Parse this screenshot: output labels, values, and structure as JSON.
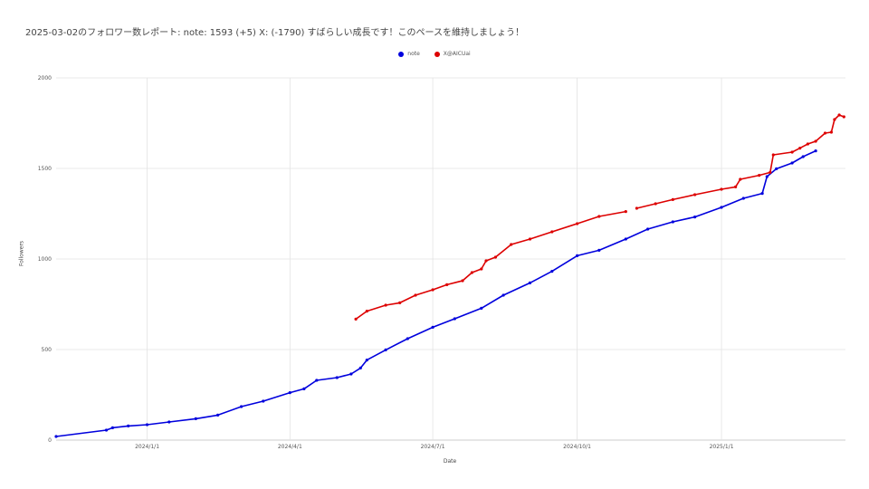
{
  "chart_data": {
    "type": "line",
    "title": "2025-03-02のフォロワー数レポート: note: 1593 (+5) X:  (-1790)  すばらしい成長です！このペースを維持しましょう！",
    "xlabel": "Date",
    "ylabel": "Followers",
    "ylim": [
      0,
      2000
    ],
    "yticks": [
      0,
      500,
      1000,
      1500,
      2000
    ],
    "xlim": [
      "2023-11-04",
      "2025-03-02"
    ],
    "xticks": [
      {
        "date": "2024-01-01",
        "label": "2024/1/1"
      },
      {
        "date": "2024-04-01",
        "label": "2024/4/1"
      },
      {
        "date": "2024-07-01",
        "label": "2024/7/1"
      },
      {
        "date": "2024-10-01",
        "label": "2024/10/1"
      },
      {
        "date": "2025-01-01",
        "label": "2025/1/1"
      }
    ],
    "grid": true,
    "legend_position": "top-center",
    "series": [
      {
        "name": "note",
        "color": "#0000dd",
        "points": [
          [
            "2023-11-04",
            20
          ],
          [
            "2023-12-06",
            55
          ],
          [
            "2023-12-10",
            68
          ],
          [
            "2023-12-20",
            78
          ],
          [
            "2024-01-01",
            85
          ],
          [
            "2024-01-15",
            100
          ],
          [
            "2024-02-01",
            118
          ],
          [
            "2024-02-15",
            138
          ],
          [
            "2024-03-01",
            185
          ],
          [
            "2024-03-15",
            215
          ],
          [
            "2024-04-01",
            262
          ],
          [
            "2024-04-10",
            283
          ],
          [
            "2024-04-18",
            330
          ],
          [
            "2024-05-01",
            345
          ],
          [
            "2024-05-10",
            365
          ],
          [
            "2024-05-16",
            398
          ],
          [
            "2024-05-20",
            442
          ],
          [
            "2024-06-01",
            498
          ],
          [
            "2024-06-15",
            560
          ],
          [
            "2024-07-01",
            623
          ],
          [
            "2024-07-15",
            670
          ],
          [
            "2024-08-01",
            728
          ],
          [
            "2024-08-15",
            800
          ],
          [
            "2024-09-01",
            868
          ],
          [
            "2024-09-15",
            932
          ],
          [
            "2024-10-01",
            1018
          ],
          [
            "2024-10-15",
            1048
          ],
          [
            "2024-11-01",
            1110
          ],
          [
            "2024-11-15",
            1165
          ],
          [
            "2024-12-01",
            1205
          ],
          [
            "2024-12-15",
            1232
          ],
          [
            "2025-01-01",
            1285
          ],
          [
            "2025-01-15",
            1335
          ],
          [
            "2025-01-27",
            1362
          ],
          [
            "2025-01-30",
            1455
          ],
          [
            "2025-02-05",
            1498
          ],
          [
            "2025-02-15",
            1530
          ],
          [
            "2025-02-22",
            1565
          ],
          [
            "2025-03-02",
            1597
          ]
        ]
      },
      {
        "name": "X@AICUai",
        "color": "#dd0000",
        "points": [
          [
            "2024-05-13",
            668
          ],
          [
            "2024-05-20",
            712
          ],
          [
            "2024-06-01",
            745
          ],
          [
            "2024-06-10",
            758
          ],
          [
            "2024-06-20",
            800
          ],
          [
            "2024-07-01",
            830
          ],
          [
            "2024-07-10",
            858
          ],
          [
            "2024-07-20",
            880
          ],
          [
            "2024-07-26",
            925
          ],
          [
            "2024-08-01",
            945
          ],
          [
            "2024-08-04",
            990
          ],
          [
            "2024-08-10",
            1010
          ],
          [
            "2024-08-20",
            1080
          ],
          [
            "2024-09-01",
            1110
          ],
          [
            "2024-09-15",
            1150
          ],
          [
            "2024-10-01",
            1195
          ],
          [
            "2024-10-15",
            1235
          ],
          [
            "2024-11-01",
            1262
          ]
        ]
      },
      {
        "name": "X@AICUai",
        "color": "#dd0000",
        "points": [
          [
            "2024-11-08",
            1280
          ],
          [
            "2024-11-20",
            1305
          ],
          [
            "2024-12-01",
            1328
          ],
          [
            "2024-12-15",
            1355
          ],
          [
            "2025-01-01",
            1385
          ],
          [
            "2025-01-10",
            1398
          ],
          [
            "2025-01-13",
            1440
          ],
          [
            "2025-01-25",
            1462
          ],
          [
            "2025-02-01",
            1478
          ],
          [
            "2025-02-03",
            1575
          ],
          [
            "2025-02-15",
            1590
          ],
          [
            "2025-02-20",
            1612
          ],
          [
            "2025-02-25",
            1635
          ],
          [
            "2025-03-02",
            1650
          ],
          [
            "2025-03-08",
            1695
          ],
          [
            "2025-03-12",
            1700
          ],
          [
            "2025-03-14",
            1770
          ],
          [
            "2025-03-17",
            1795
          ],
          [
            "2025-03-20",
            1785
          ]
        ]
      }
    ]
  }
}
